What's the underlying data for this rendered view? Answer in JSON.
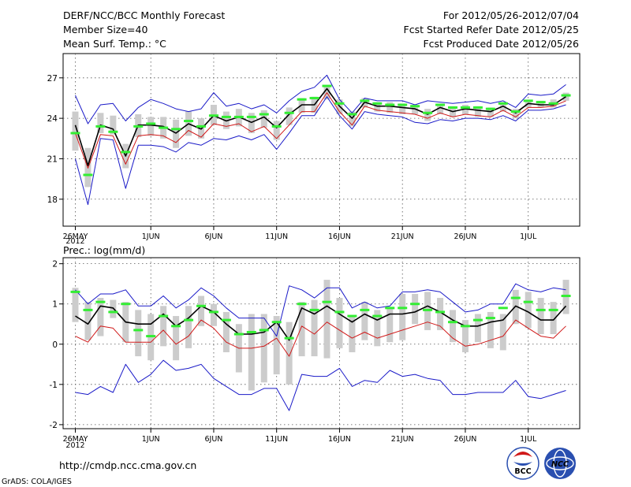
{
  "header": {
    "title": "DERF/NCC/BCC Monthly Forecast",
    "member": "Member Size=40",
    "variable": "Mean Surf. Temp.: °C",
    "period": "For 2012/05/26-2012/07/04",
    "refer": "Fcst Started Refer Date 2012/05/25",
    "produced": "Fcst Produced Date 2012/05/26"
  },
  "footer": {
    "url": "http://cmdp.ncc.cma.gov.cn",
    "grads": "GrADS: COLA/IGES",
    "logo_bcc": "BCC",
    "logo_ncc": "NCC"
  },
  "colors": {
    "mean": "#000000",
    "outer_bounds": "#1a1ac8",
    "lower_line": "#d01818",
    "box": "#cccccc",
    "marker": "#33ee33",
    "grid": "#555555"
  },
  "chart_data": [
    {
      "type": "line",
      "title": "Mean Surf. Temp.: °C",
      "x_tick_labels": [
        "26MAY",
        "1JUN",
        "6JUN",
        "11JUN",
        "16JUN",
        "21JUN",
        "26JUN",
        "1JUL"
      ],
      "x_tick_days": [
        0,
        6,
        11,
        16,
        21,
        26,
        31,
        36
      ],
      "year_label": "2012",
      "ylim": [
        16,
        28.8
      ],
      "yticks": [
        18,
        21,
        24,
        27
      ],
      "series": [
        {
          "name": "upper_bound",
          "values": [
            25.7,
            23.6,
            25,
            25.1,
            23.8,
            24.8,
            25.4,
            25.1,
            24.7,
            24.5,
            24.7,
            25.9,
            24.9,
            25.1,
            24.7,
            25,
            24.4,
            25.3,
            26,
            26.3,
            27.2,
            25.4,
            24.4,
            25.5,
            25.3,
            25.3,
            25.3,
            25,
            25.3,
            25.2,
            25.1,
            25.2,
            25.3,
            25.1,
            25.3,
            24.8,
            25.8,
            25.7,
            25.8,
            26.5
          ]
        },
        {
          "name": "mean",
          "values": [
            23.5,
            20.5,
            23.5,
            23.2,
            21.2,
            23.5,
            23.5,
            23.4,
            22.9,
            23.6,
            23.2,
            24.2,
            23.8,
            24.1,
            23.7,
            24.1,
            23.3,
            24.3,
            25,
            25,
            26.2,
            24.9,
            24,
            25.2,
            24.9,
            24.9,
            24.8,
            24.7,
            24.3,
            24.8,
            24.5,
            24.7,
            24.6,
            24.5,
            24.9,
            24.4,
            25.1,
            25,
            25,
            25.6
          ]
        },
        {
          "name": "lower_line",
          "values": [
            22.9,
            20.3,
            22.8,
            22.7,
            20.6,
            22.7,
            22.8,
            22.7,
            22.2,
            23.1,
            22.6,
            23.6,
            23.4,
            23.6,
            23,
            23.4,
            22.5,
            23.5,
            24.5,
            24.5,
            25.9,
            24.5,
            23.5,
            24.9,
            24.6,
            24.5,
            24.4,
            24.3,
            24,
            24.4,
            24.1,
            24.3,
            24.2,
            24.1,
            24.6,
            24.1,
            24.8,
            24.8,
            24.9,
            25.3
          ]
        },
        {
          "name": "lower_bound",
          "values": [
            21,
            17.6,
            22.5,
            22.4,
            18.8,
            22,
            22,
            21.9,
            21.5,
            22.2,
            22,
            22.5,
            22.4,
            22.7,
            22.4,
            22.8,
            21.7,
            22.9,
            24.2,
            24.2,
            25.6,
            24.2,
            23.2,
            24.5,
            24.3,
            24.2,
            24.1,
            23.7,
            23.6,
            23.9,
            23.8,
            24,
            24,
            23.9,
            24.2,
            23.8,
            24.6,
            24.6,
            24.7,
            25
          ]
        },
        {
          "name": "box_top",
          "values": [
            24.5,
            21.8,
            24.4,
            24.2,
            22.1,
            24.3,
            24.1,
            24.1,
            23.9,
            24.5,
            24,
            25,
            24.5,
            24.7,
            24.4,
            24.6,
            23.8,
            24.8,
            25.5,
            25.6,
            26.4,
            25.4,
            24.5,
            25.5,
            25.2,
            25.2,
            25.1,
            25,
            24.7,
            25.1,
            24.9,
            25,
            24.9,
            24.8,
            25.2,
            24.7,
            25.3,
            25.3,
            25.4,
            25.9
          ]
        },
        {
          "name": "box_bottom",
          "values": [
            21.6,
            18.9,
            22.9,
            22.8,
            20.3,
            22.6,
            22.7,
            22.5,
            21.8,
            22.7,
            22.5,
            23.5,
            23.2,
            23.4,
            22.9,
            23.3,
            22.4,
            23.5,
            24.4,
            24.4,
            25.4,
            24.3,
            23.4,
            24.8,
            24.5,
            24.4,
            24.3,
            24.3,
            23.8,
            24.3,
            24.1,
            24.3,
            24.1,
            24.1,
            24.5,
            24,
            24.8,
            24.8,
            24.8,
            25.3
          ]
        },
        {
          "name": "markers",
          "values": [
            22.9,
            19.8,
            23.4,
            23,
            21.5,
            23.4,
            23.6,
            23.3,
            23.2,
            23.8,
            23.4,
            24.2,
            24.1,
            24.1,
            24.1,
            24.3,
            23.4,
            24.4,
            25.4,
            25.5,
            26.4,
            25.1,
            24.3,
            25.3,
            25.1,
            25,
            25,
            24.9,
            24.4,
            25,
            24.8,
            24.8,
            24.8,
            24.7,
            25.1,
            24.5,
            25.3,
            25.2,
            25.1,
            25.7
          ]
        }
      ]
    },
    {
      "type": "line",
      "title": "Prec.: log(mm/d)",
      "x_tick_labels": [
        "26MAY",
        "1JUN",
        "6JUN",
        "11JUN",
        "16JUN",
        "21JUN",
        "26JUN",
        "1JUL"
      ],
      "x_tick_days": [
        0,
        6,
        11,
        16,
        21,
        26,
        31,
        36
      ],
      "year_label": "2012",
      "ylim": [
        -2.1,
        2.15
      ],
      "yticks": [
        -2,
        -1,
        0,
        1,
        2
      ],
      "series": [
        {
          "name": "upper_bound",
          "values": [
            1.35,
            1,
            1.25,
            1.25,
            1.35,
            0.95,
            0.95,
            1.2,
            0.9,
            1.1,
            1.4,
            1.2,
            0.9,
            0.65,
            0.65,
            0.65,
            0.2,
            1.45,
            1.35,
            1.15,
            1.4,
            1.4,
            0.9,
            1.05,
            0.9,
            0.95,
            1.3,
            1.3,
            1.35,
            1.3,
            1.05,
            0.8,
            0.85,
            1,
            1,
            1.5,
            1.35,
            1.3,
            1.4,
            1.35
          ]
        },
        {
          "name": "mean",
          "values": [
            0.7,
            0.5,
            0.95,
            0.9,
            0.55,
            0.5,
            0.5,
            0.75,
            0.45,
            0.65,
            0.95,
            0.8,
            0.5,
            0.25,
            0.25,
            0.3,
            0.55,
            0.1,
            0.9,
            0.75,
            0.95,
            0.75,
            0.55,
            0.75,
            0.6,
            0.75,
            0.75,
            0.8,
            0.95,
            0.8,
            0.6,
            0.45,
            0.45,
            0.55,
            0.6,
            0.95,
            0.8,
            0.6,
            0.6,
            0.95
          ]
        },
        {
          "name": "lower_line",
          "values": [
            0.2,
            0.05,
            0.45,
            0.4,
            0.05,
            0.05,
            0.05,
            0.35,
            0,
            0.2,
            0.6,
            0.4,
            0.05,
            -0.1,
            -0.1,
            -0.05,
            0.15,
            -0.3,
            0.45,
            0.25,
            0.55,
            0.35,
            0.15,
            0.3,
            0.15,
            0.25,
            0.35,
            0.45,
            0.55,
            0.45,
            0.15,
            -0.05,
            0,
            0.1,
            0.2,
            0.6,
            0.4,
            0.2,
            0.15,
            0.45
          ]
        },
        {
          "name": "lower_bound",
          "values": [
            -1.2,
            -1.25,
            -1.05,
            -1.2,
            -0.5,
            -0.95,
            -0.75,
            -0.4,
            -0.65,
            -0.6,
            -0.5,
            -0.85,
            -1.05,
            -1.25,
            -1.25,
            -1.1,
            -1.1,
            -1.65,
            -0.75,
            -0.8,
            -0.8,
            -0.6,
            -1.05,
            -0.9,
            -0.95,
            -0.65,
            -0.8,
            -0.75,
            -0.85,
            -0.9,
            -1.25,
            -1.25,
            -1.2,
            -1.2,
            -1.2,
            -0.9,
            -1.3,
            -1.35,
            -1.25,
            -1.15
          ]
        },
        {
          "name": "box_top",
          "values": [
            1.4,
            1.05,
            1.15,
            1.1,
            1.05,
            0.85,
            0.75,
            0.95,
            0.7,
            0.95,
            1.2,
            1,
            0.8,
            0.5,
            0.75,
            0.75,
            0.7,
            0.55,
            1.05,
            1.1,
            1.6,
            1.15,
            0.7,
            1.05,
            0.85,
            0.9,
            1.25,
            1.25,
            1.3,
            1.15,
            0.85,
            0.6,
            0.75,
            0.8,
            0.75,
            1.35,
            1.3,
            1.15,
            1.05,
            1.6
          ]
        },
        {
          "name": "box_bottom",
          "values": [
            0.55,
            0.1,
            0.2,
            0.65,
            0.05,
            -0.3,
            -0.4,
            -0.05,
            -0.4,
            -0.1,
            0.45,
            0.45,
            -0.2,
            -0.7,
            -1.15,
            -0.95,
            -0.75,
            -1.0,
            -0.3,
            -0.3,
            -0.35,
            -0.1,
            -0.2,
            0.1,
            -0.05,
            0.05,
            0.1,
            0.5,
            0.35,
            0.35,
            0.05,
            -0.2,
            0.05,
            -0.1,
            -0.15,
            0.5,
            0.4,
            0.25,
            0.25,
            0.75
          ]
        },
        {
          "name": "markers",
          "values": [
            1.3,
            0.85,
            1.05,
            0.8,
            1,
            0.35,
            0.2,
            0.7,
            0.45,
            0.6,
            0.95,
            0.8,
            0.6,
            0.25,
            0.3,
            0.35,
            0.55,
            0.15,
            1,
            0.85,
            1.05,
            0.8,
            0.7,
            0.85,
            0.7,
            0.9,
            0.9,
            1,
            0.85,
            0.8,
            0.55,
            0.45,
            0.6,
            0.65,
            0.9,
            1.15,
            1.05,
            0.85,
            0.85,
            1.2
          ]
        }
      ]
    }
  ]
}
